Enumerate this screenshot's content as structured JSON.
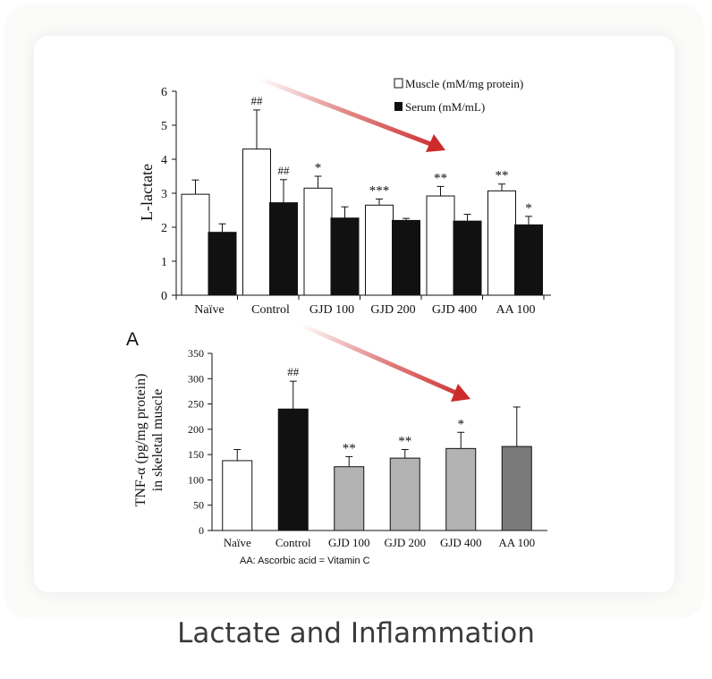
{
  "caption": "Lactate and Inflammation",
  "panel_label": "A",
  "footnote": "AA: Ascorbic acid = Vitamin C",
  "colors": {
    "arrow": "#cc2b2b",
    "muscle_fill": "#ffffff",
    "serum_fill": "#111111",
    "tnf_fills": [
      "#ffffff",
      "#111111",
      "#b3b3b3",
      "#b3b3b3",
      "#b3b3b3",
      "#7a7a7a"
    ]
  },
  "chart_data": [
    {
      "type": "bar",
      "title": "",
      "xlabel": "",
      "ylabel": "L-lactate",
      "ylim": [
        0,
        6
      ],
      "yticks": [
        "0",
        "1",
        "2",
        "3",
        "4",
        "5",
        "6"
      ],
      "categories": [
        "Naïve",
        "Control",
        "GJD 100",
        "GJD 200",
        "GJD 400",
        "AA 100"
      ],
      "legend_position": "top-right",
      "series": [
        {
          "name": "Muscle (mM/mg protein)",
          "values": [
            2.97,
            4.3,
            3.15,
            2.65,
            2.92,
            3.07
          ],
          "errors": [
            0.42,
            1.15,
            0.35,
            0.18,
            0.28,
            0.2
          ],
          "annotations": [
            "",
            "##",
            "*",
            "***",
            "**",
            "**"
          ]
        },
        {
          "name": "Serum (mM/mL)",
          "values": [
            1.85,
            2.72,
            2.27,
            2.2,
            2.18,
            2.07
          ],
          "errors": [
            0.25,
            0.68,
            0.33,
            0.06,
            0.2,
            0.25
          ],
          "annotations": [
            "",
            "##",
            "",
            "",
            "",
            "*"
          ]
        }
      ]
    },
    {
      "type": "bar",
      "title": "",
      "xlabel": "",
      "ylabel": [
        "TNF-α (pg/mg protein)",
        "in skeletal muscle"
      ],
      "ylim": [
        0,
        350
      ],
      "yticks": [
        "0",
        "50",
        "100",
        "150",
        "200",
        "250",
        "300",
        "350"
      ],
      "categories": [
        "Naïve",
        "Control",
        "GJD 100",
        "GJD 200",
        "GJD 400",
        "AA 100"
      ],
      "values": [
        138,
        240,
        126,
        143,
        162,
        166
      ],
      "errors": [
        22,
        55,
        20,
        17,
        32,
        78
      ],
      "annotations": [
        "",
        "##",
        "**",
        "**",
        "*",
        ""
      ]
    }
  ]
}
